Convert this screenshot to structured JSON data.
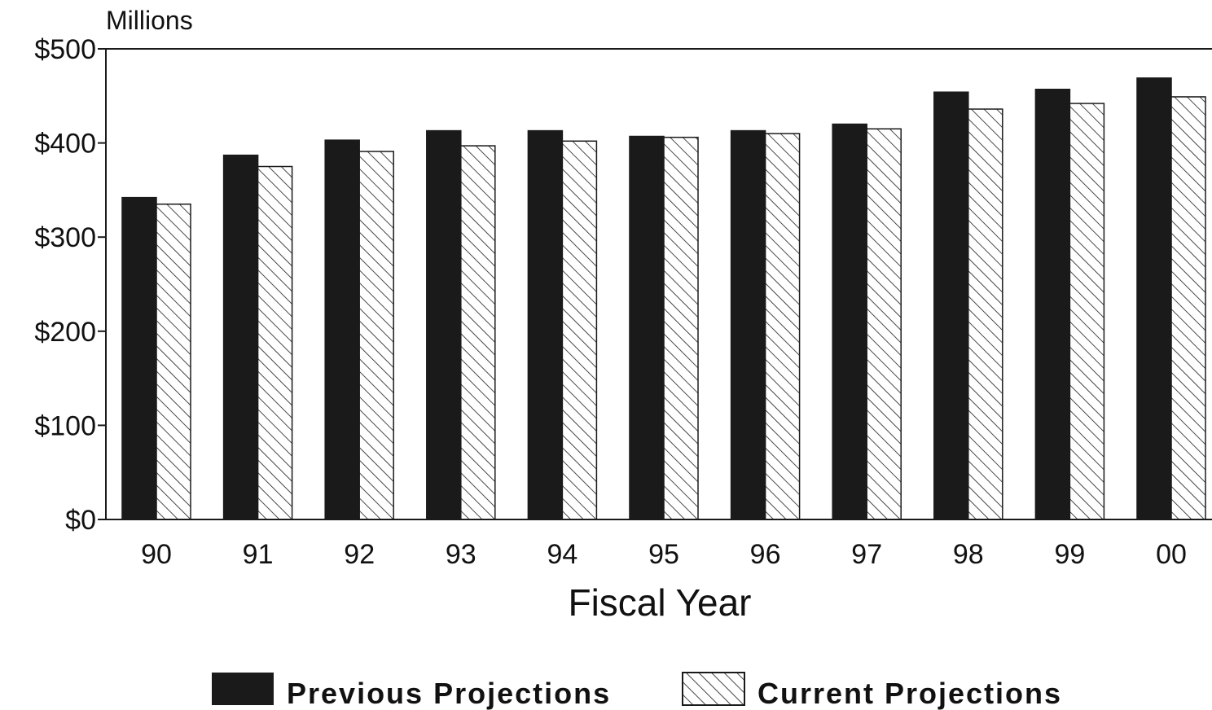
{
  "chart_data": {
    "type": "bar",
    "unit_label": "Millions",
    "xlabel": "Fiscal Year",
    "categories": [
      "90",
      "91",
      "92",
      "93",
      "94",
      "95",
      "96",
      "97",
      "98",
      "99",
      "00"
    ],
    "series": [
      {
        "name": "Previous Projections",
        "values": [
          342,
          387,
          403,
          413,
          413,
          407,
          413,
          420,
          454,
          457,
          469
        ],
        "fill": "solid",
        "color": "#1a1a1a"
      },
      {
        "name": "Current Projections",
        "values": [
          335,
          375,
          391,
          397,
          402,
          406,
          410,
          415,
          436,
          442,
          449
        ],
        "fill": "hatched",
        "color": "#1a1a1a"
      }
    ],
    "ylim": [
      0,
      500
    ],
    "yticks": [
      0,
      100,
      200,
      300,
      400,
      500
    ],
    "ytick_labels": [
      "$0",
      "$100",
      "$200",
      "$300",
      "$400",
      "$500"
    ],
    "grid": false,
    "legend": "bottom-center"
  }
}
